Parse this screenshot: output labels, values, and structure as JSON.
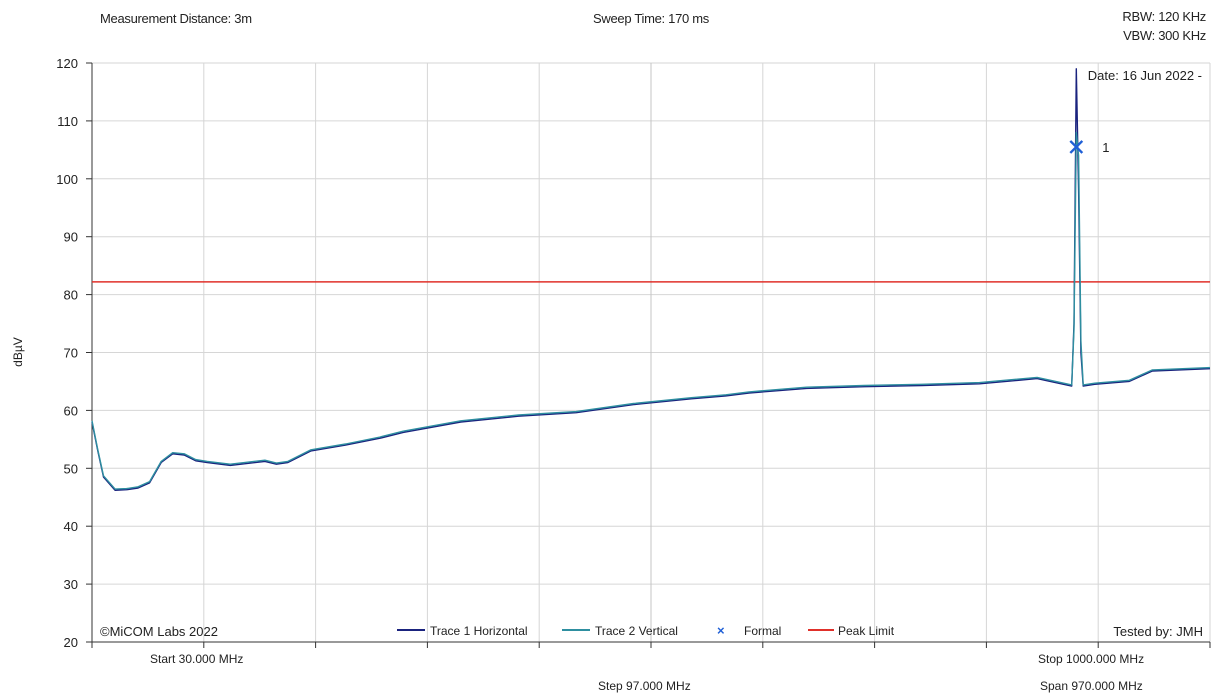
{
  "header": {
    "distance": "Measurement Distance: 3m",
    "sweep": "Sweep Time: 170 ms",
    "rbw": "RBW: 120 KHz",
    "vbw": "VBW: 300 KHz"
  },
  "chart_data": {
    "type": "line",
    "ylabel": "dBµV",
    "ylim": [
      20,
      120
    ],
    "yticks": [
      20,
      30,
      40,
      50,
      60,
      70,
      80,
      90,
      100,
      110,
      120
    ],
    "xlim": [
      30,
      1000
    ],
    "x_unit": "MHz",
    "grid": true,
    "date": "Date: 16 Jun 2022 -",
    "copyright": "©MiCOM Labs 2022",
    "tested_by": "Tested by: JMH",
    "freq_info": {
      "start": "Start 30.000 MHz",
      "stop": "Stop 1000.000 MHz",
      "step": "Step 97.000 MHz",
      "span": "Span 970.000 MHz"
    },
    "legend_placement": "bottom",
    "series": [
      {
        "name": "Trace 1 Horizontal",
        "color": "#1a237e",
        "x": [
          30,
          35,
          40,
          50,
          60,
          70,
          80,
          90,
          100,
          110,
          120,
          130,
          150,
          180,
          190,
          200,
          220,
          250,
          280,
          300,
          350,
          400,
          450,
          500,
          550,
          580,
          600,
          650,
          700,
          750,
          800,
          850,
          880,
          882,
          884,
          886,
          888,
          890,
          900,
          930,
          950,
          1000
        ],
        "y": [
          58,
          53,
          48.5,
          46.2,
          46.3,
          46.6,
          47.5,
          51,
          52.5,
          52.3,
          51.3,
          51,
          50.5,
          51.2,
          50.7,
          51,
          53,
          54,
          55.2,
          56.2,
          58,
          59,
          59.6,
          61,
          62,
          62.5,
          63,
          63.8,
          64.1,
          64.3,
          64.6,
          65.5,
          64.2,
          75,
          119,
          98,
          70,
          64.2,
          64.5,
          65,
          66.8,
          67.2
        ]
      },
      {
        "name": "Trace 2 Vertical",
        "color": "#2e8fa0",
        "x": [
          30,
          35,
          40,
          50,
          60,
          70,
          80,
          90,
          100,
          110,
          120,
          130,
          150,
          180,
          190,
          200,
          220,
          250,
          280,
          300,
          350,
          400,
          450,
          500,
          550,
          580,
          600,
          650,
          700,
          750,
          800,
          850,
          880,
          882,
          884,
          886,
          888,
          890,
          900,
          930,
          950,
          1000
        ],
        "y": [
          58.2,
          53.2,
          48.7,
          46.4,
          46.5,
          46.8,
          47.7,
          51.2,
          52.7,
          52.5,
          51.5,
          51.2,
          50.7,
          51.4,
          50.9,
          51.2,
          53.2,
          54.2,
          55.4,
          56.4,
          58.2,
          59.2,
          59.8,
          61.2,
          62.2,
          62.7,
          63.2,
          64,
          64.3,
          64.5,
          64.8,
          65.7,
          64.4,
          74,
          108,
          104,
          72,
          64.4,
          64.7,
          65.2,
          67,
          67.4
        ]
      }
    ],
    "marker": {
      "name": "Formal",
      "label": "1",
      "x": 884,
      "y": 105.5,
      "color": "#1f5fd6"
    },
    "limit": {
      "name": "Peak Limit",
      "y": 82.2,
      "color": "#e0302a"
    }
  }
}
